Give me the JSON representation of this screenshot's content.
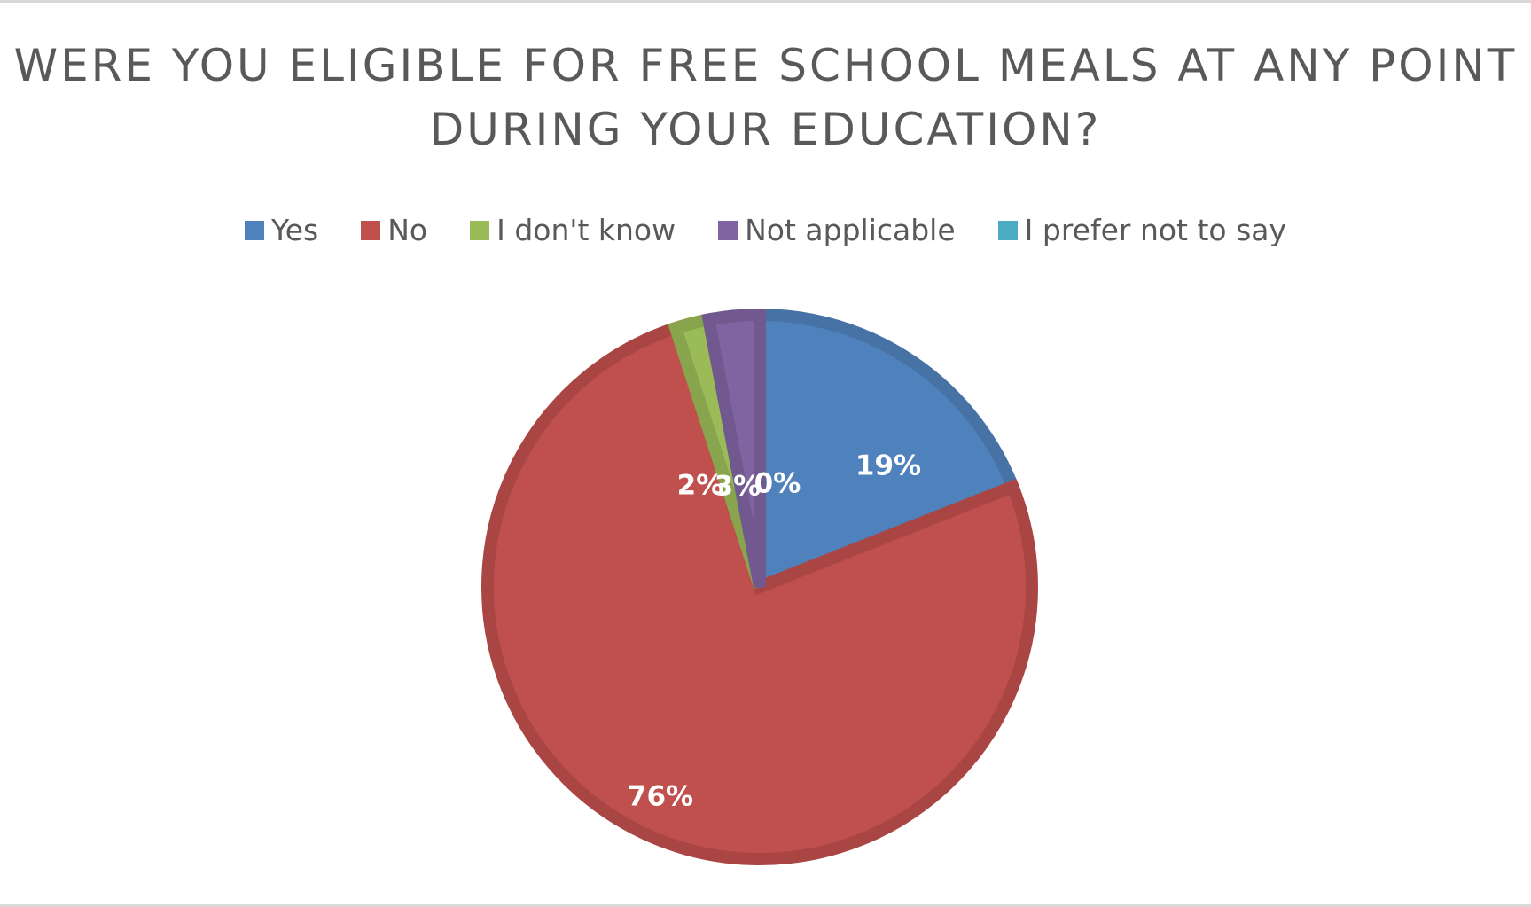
{
  "chart_data": {
    "type": "pie",
    "title": "WERE YOU ELIGIBLE FOR FREE SCHOOL MEALS AT ANY POINT DURING YOUR EDUCATION?",
    "title_lines": [
      "WERE YOU ELIGIBLE FOR FREE SCHOOL MEALS AT ANY POINT",
      "DURING YOUR EDUCATION?"
    ],
    "categories": [
      "Yes",
      "No",
      "I don't know",
      "Not applicable",
      "I prefer not to say"
    ],
    "values": [
      19,
      76,
      2,
      3,
      0
    ],
    "data_labels": [
      "19%",
      "76%",
      "2%",
      "3%",
      "0%"
    ],
    "colors": [
      "#4f81bd",
      "#c0504d",
      "#9bbb59",
      "#8064a2",
      "#4bacc6"
    ],
    "legend_position": "top"
  }
}
